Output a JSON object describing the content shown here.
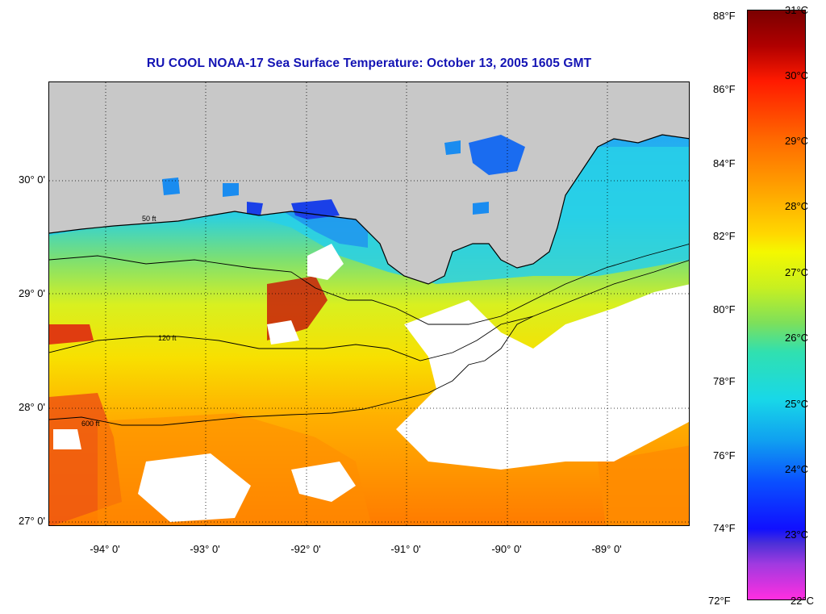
{
  "title": "RU COOL  NOAA-17  Sea Surface Temperature:  October 13, 2005 1605 GMT",
  "lat_labels": [
    "30° 0'",
    "29° 0'",
    "28° 0'",
    "27° 0'"
  ],
  "lon_labels": [
    "-94° 0'",
    "-93° 0'",
    "-92° 0'",
    "-91° 0'",
    "-90° 0'",
    "-89° 0'"
  ],
  "contour_labels": [
    "50 ft",
    "120 ft",
    "600 ft"
  ],
  "colorbar": {
    "fahrenheit": [
      "88°F",
      "86°F",
      "84°F",
      "82°F",
      "80°F",
      "78°F",
      "76°F",
      "74°F",
      "72°F"
    ],
    "celsius": [
      "31°C",
      "30°C",
      "29°C",
      "28°C",
      "27°C",
      "26°C",
      "25°C",
      "24°C",
      "23°C",
      "22°C"
    ]
  },
  "colors": {
    "title": "#1414b4",
    "land": "#c8c8c8",
    "cloud": "#ffffff"
  },
  "map": {
    "lon_range": [
      -94.5,
      -88.2
    ],
    "lat_range": [
      26.95,
      30.85
    ],
    "type": "sea surface temperature satellite image"
  }
}
